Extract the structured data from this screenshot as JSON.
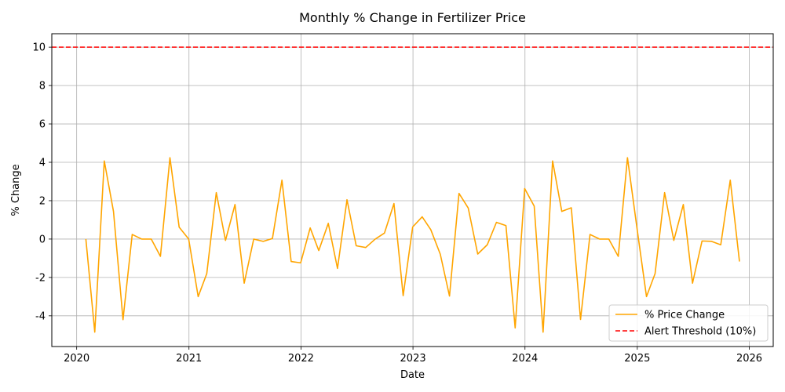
{
  "chart_data": {
    "type": "line",
    "title": "Monthly % Change in Fertilizer Price",
    "xlabel": "Date",
    "ylabel": "% Change",
    "xlim": [
      "2019-10-12",
      "2026-03-20"
    ],
    "ylim": [
      -5.6,
      10.7
    ],
    "x_ticks": [
      "2020",
      "2021",
      "2022",
      "2023",
      "2024",
      "2025",
      "2026"
    ],
    "y_ticks": [
      -4,
      -2,
      0,
      2,
      4,
      6,
      8,
      10
    ],
    "grid": true,
    "legend_position": "lower-right",
    "series": [
      {
        "name": "% Price Change",
        "color": "#ffa500",
        "dates": [
          "2020-01-31",
          "2020-02-29",
          "2020-03-31",
          "2020-04-30",
          "2020-05-31",
          "2020-06-30",
          "2020-07-31",
          "2020-08-31",
          "2020-09-30",
          "2020-10-31",
          "2020-11-30",
          "2020-12-31",
          "2021-01-31",
          "2021-02-28",
          "2021-03-31",
          "2021-04-30",
          "2021-05-31",
          "2021-06-30",
          "2021-07-31",
          "2021-08-31",
          "2021-09-30",
          "2021-10-31",
          "2021-11-30",
          "2021-12-31",
          "2022-01-31",
          "2022-02-28",
          "2022-03-31",
          "2022-04-30",
          "2022-05-31",
          "2022-06-30",
          "2022-07-31",
          "2022-08-31",
          "2022-09-30",
          "2022-10-31",
          "2022-11-30",
          "2022-12-31",
          "2023-01-31",
          "2023-02-28",
          "2023-03-31",
          "2023-04-30",
          "2023-05-31",
          "2023-06-30",
          "2023-07-31",
          "2023-08-31",
          "2023-09-30",
          "2023-10-31",
          "2023-11-30",
          "2023-12-31",
          "2024-01-31",
          "2024-02-29",
          "2024-03-31",
          "2024-04-30",
          "2024-05-31",
          "2024-06-30",
          "2024-07-31",
          "2024-08-31",
          "2024-09-30",
          "2024-10-31",
          "2024-11-30",
          "2024-12-31",
          "2025-01-31",
          "2025-02-28",
          "2025-03-31",
          "2025-04-30",
          "2025-05-31",
          "2025-06-30",
          "2025-07-31",
          "2025-08-31",
          "2025-09-30",
          "2025-10-31",
          "2025-11-30"
        ],
        "values": [
          0,
          -4.85,
          4.07,
          1.44,
          -4.2,
          0.24,
          0.0,
          0.0,
          -0.9,
          4.24,
          0.62,
          0.0,
          -3.0,
          -1.8,
          2.42,
          -0.07,
          1.8,
          -2.3,
          0.0,
          -0.12,
          0.03,
          3.07,
          -1.17,
          -1.24,
          0.58,
          -0.6,
          0.82,
          -1.53,
          2.05,
          -0.35,
          -0.44,
          0.0,
          0.31,
          1.85,
          -2.95,
          0.63,
          1.16,
          0.49,
          -0.79,
          -2.97,
          2.38,
          1.62,
          -0.78,
          -0.3,
          0.87,
          0.7,
          -4.63,
          2.63,
          1.72,
          -4.85,
          4.07,
          1.44,
          1.63,
          -4.19,
          0.24,
          0.0,
          0.0,
          -0.9,
          4.24,
          0.57,
          -3.0,
          -1.8,
          2.42,
          -0.07,
          1.8,
          -2.3,
          -0.1,
          -0.12,
          -0.3,
          3.07,
          -1.17
        ]
      }
    ],
    "threshold": {
      "name": "Alert Threshold (10%)",
      "value": 10,
      "color": "#ff0000",
      "style": "dashed"
    }
  }
}
